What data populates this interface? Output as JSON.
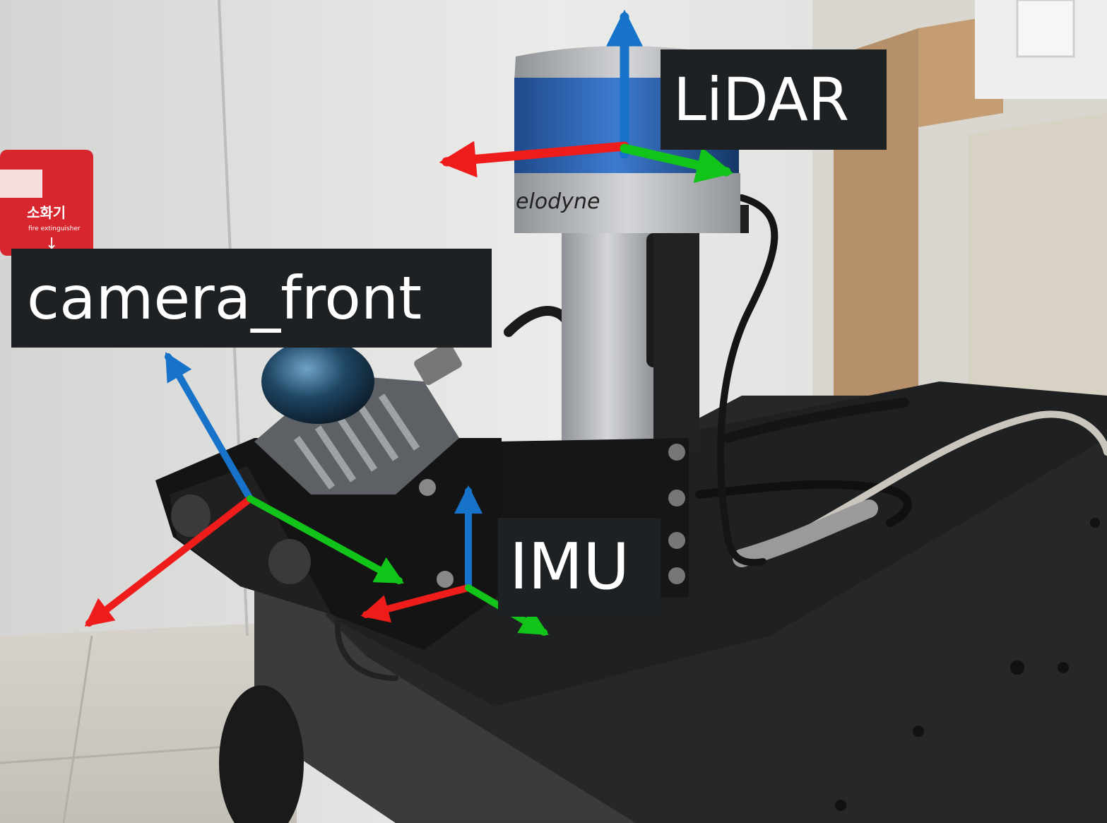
{
  "labels": {
    "lidar": "LiDAR",
    "camera": "camera_front",
    "imu": "IMU"
  },
  "scene": {
    "lidar_brand": "elodyne",
    "sign_korean": "소화기",
    "sign_english": "fire extinguisher"
  },
  "colors": {
    "x_axis": "#ef1c1c",
    "y_axis": "#12c41a",
    "z_axis": "#1673c9",
    "label_bg": "#1e2124",
    "label_text": "#ffffff"
  }
}
